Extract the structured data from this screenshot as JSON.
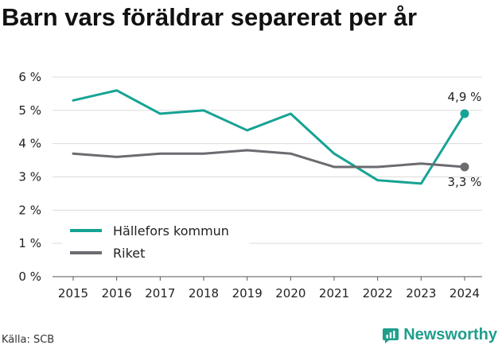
{
  "title": "Barn vars föräldrar separerat per år",
  "source": "Källa: SCB",
  "brand": "Newsworthy",
  "colors": {
    "hallefors": "#16a394",
    "riket": "#6b6b70",
    "grid": "#dcdcdc",
    "brand": "#1f9e8c"
  },
  "icons": [
    "newsworthy-logo-icon"
  ],
  "chart_data": {
    "type": "line",
    "categories": [
      "2015",
      "2016",
      "2017",
      "2018",
      "2019",
      "2020",
      "2021",
      "2022",
      "2023",
      "2024"
    ],
    "y_ticks": [
      "0 %",
      "1 %",
      "2 %",
      "3 %",
      "4 %",
      "5 %",
      "6 %"
    ],
    "ylim": [
      0,
      6
    ],
    "grid": true,
    "legend_position": "bottom-left",
    "series": [
      {
        "name": "Hällefors kommun",
        "values": [
          5.3,
          5.6,
          4.9,
          5.0,
          4.4,
          4.9,
          3.7,
          2.9,
          2.8,
          4.9
        ],
        "end_label": "4,9 %"
      },
      {
        "name": "Riket",
        "values": [
          3.7,
          3.6,
          3.7,
          3.7,
          3.8,
          3.7,
          3.3,
          3.3,
          3.4,
          3.3
        ],
        "end_label": "3,3 %"
      }
    ]
  }
}
